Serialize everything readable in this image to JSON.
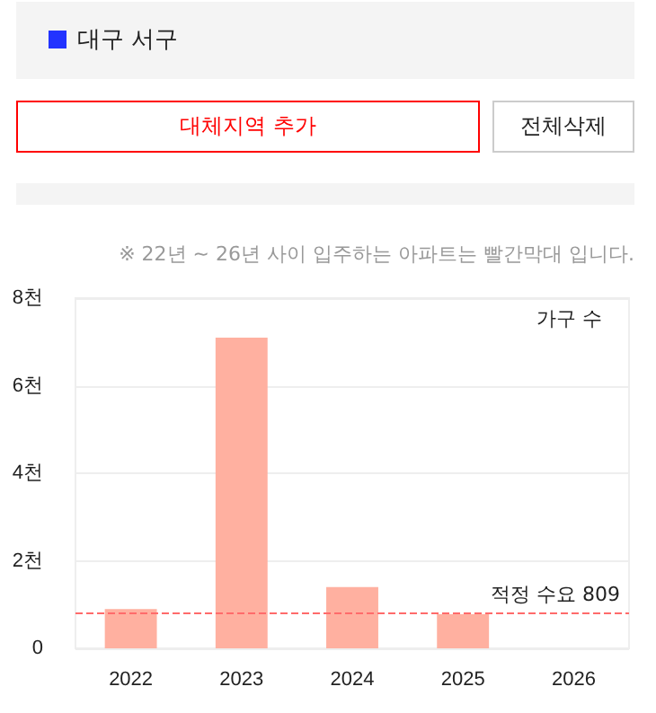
{
  "chart_data": {
    "type": "bar",
    "title": "대구 서구",
    "ylabel": "가구 수",
    "annotations": [
      "대체지역 추가",
      "전체삭제",
      "※ 22년 ~ 26년 사이 입주하는 아파트는 빨간막대 입니다."
    ],
    "categories": [
      "2022",
      "2023",
      "2024",
      "2025",
      "2026"
    ],
    "values": [
      0.9,
      7.1,
      1.4,
      0.78,
      0
    ],
    "color": "#ffb0a0",
    "ylim": [
      0,
      8
    ],
    "yticks": [
      0,
      {
        "value": 2,
        "label": "2천"
      },
      {
        "value": 4,
        "label": "4천"
      },
      {
        "value": 6,
        "label": "6천"
      },
      {
        "value": 8,
        "label": "8천"
      }
    ],
    "ref_lines": [
      {
        "axis": "y",
        "value": 0.809,
        "label": "적정 수요 809",
        "color": "#ff6b6b",
        "line_style": "dashed"
      }
    ],
    "grid": "y"
  }
}
